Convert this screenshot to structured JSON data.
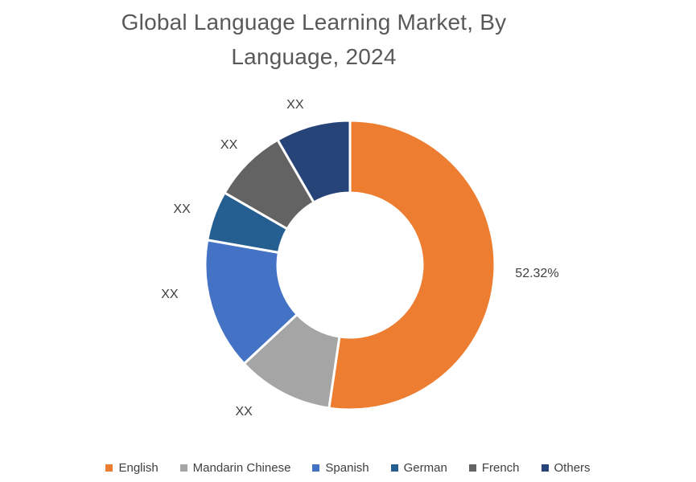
{
  "title": {
    "line1": "Global Language Learning Market, By",
    "line2": "Language, 2024",
    "full": "Global Language Learning Market, By Language, 2024"
  },
  "chart_data": {
    "type": "pie",
    "subtype": "donut",
    "title": "Global Language Learning Market, By Language, 2024",
    "categories": [
      "English",
      "Mandarin Chinese",
      "Spanish",
      "German",
      "French",
      "Others"
    ],
    "values": [
      52.32,
      10.74,
      14.72,
      5.56,
      8.33,
      8.33
    ],
    "value_unit": "percent",
    "displayed_labels": [
      "52.32%",
      "XX",
      "XX",
      "XX",
      "XX",
      "XX"
    ],
    "colors": [
      "#ED7D31",
      "#A5A5A5",
      "#4472C4",
      "#255E91",
      "#636363",
      "#264478"
    ],
    "start_angle_deg": 0,
    "direction": "clockwise",
    "inner_radius_ratio": 0.5,
    "slice_border_color": "#FFFFFF",
    "legend_position": "bottom",
    "background": "#FFFFFF",
    "values_note": "Only the English share (52.32%) is labeled in the chart; remaining slice values are estimated from arc angles (their labels show XX)."
  },
  "text_colors": {
    "title": "#595959",
    "data_labels": "#404040",
    "legend": "#404040"
  }
}
